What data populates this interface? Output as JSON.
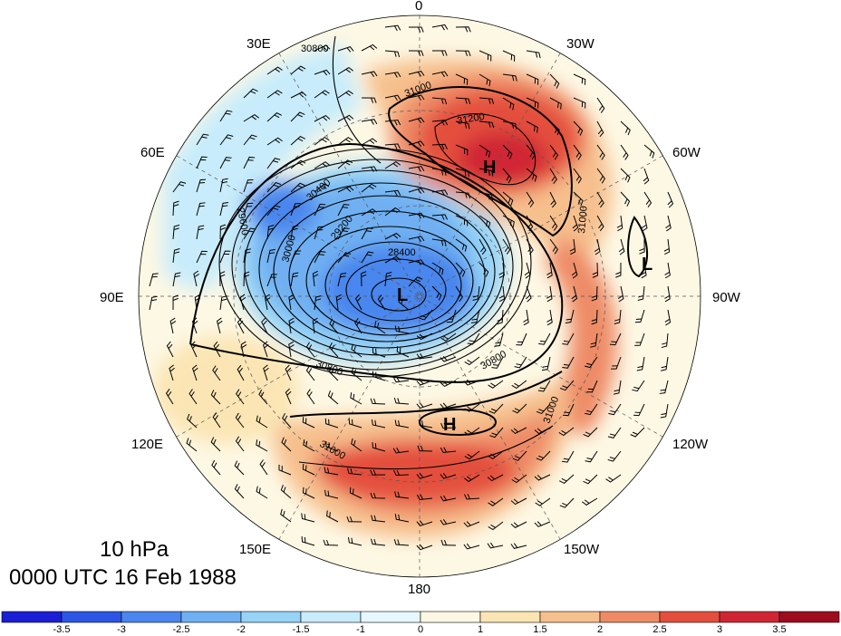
{
  "longitude_labels": {
    "lon_0": "0",
    "lon_30w": "30W",
    "lon_60w": "60W",
    "lon_90w": "90W",
    "lon_120w": "120W",
    "lon_150w": "150W",
    "lon_180": "180",
    "lon_150e": "150E",
    "lon_120e": "120E",
    "lon_90e": "90E",
    "lon_60e": "60E",
    "lon_30e": "30E"
  },
  "title": {
    "level": "10 hPa",
    "time": "0000 UTC 16 Feb 1988"
  },
  "highs_lows": {
    "high_north": "H",
    "high_south": "H",
    "low_center": "L",
    "low_east": "L"
  },
  "contour_labels": {
    "c1": "30800",
    "c2": "31000",
    "c3": "31200",
    "c4": "30400",
    "c5": "29600",
    "c6": "30000",
    "c7": "29200",
    "c8": "28400",
    "c9": "31000",
    "c10": "30800",
    "c11": "30800",
    "c12": "31000",
    "c13": "31000"
  },
  "colorbar": {
    "ticks": [
      "-3.5",
      "-3",
      "-2.5",
      "-2",
      "-1.5",
      "-1",
      "0",
      "1",
      "1.5",
      "2",
      "2.5",
      "3",
      "3.5"
    ],
    "colors": [
      "#1a1fd6",
      "#2c55e6",
      "#4a86ee",
      "#6fb0f2",
      "#96d3f6",
      "#c8ecfb",
      "#e6f7fd",
      "#fdf8e4",
      "#fbe5b4",
      "#f6c08d",
      "#ee8b66",
      "#e44f3d",
      "#d02634",
      "#9e0d1e"
    ]
  }
}
